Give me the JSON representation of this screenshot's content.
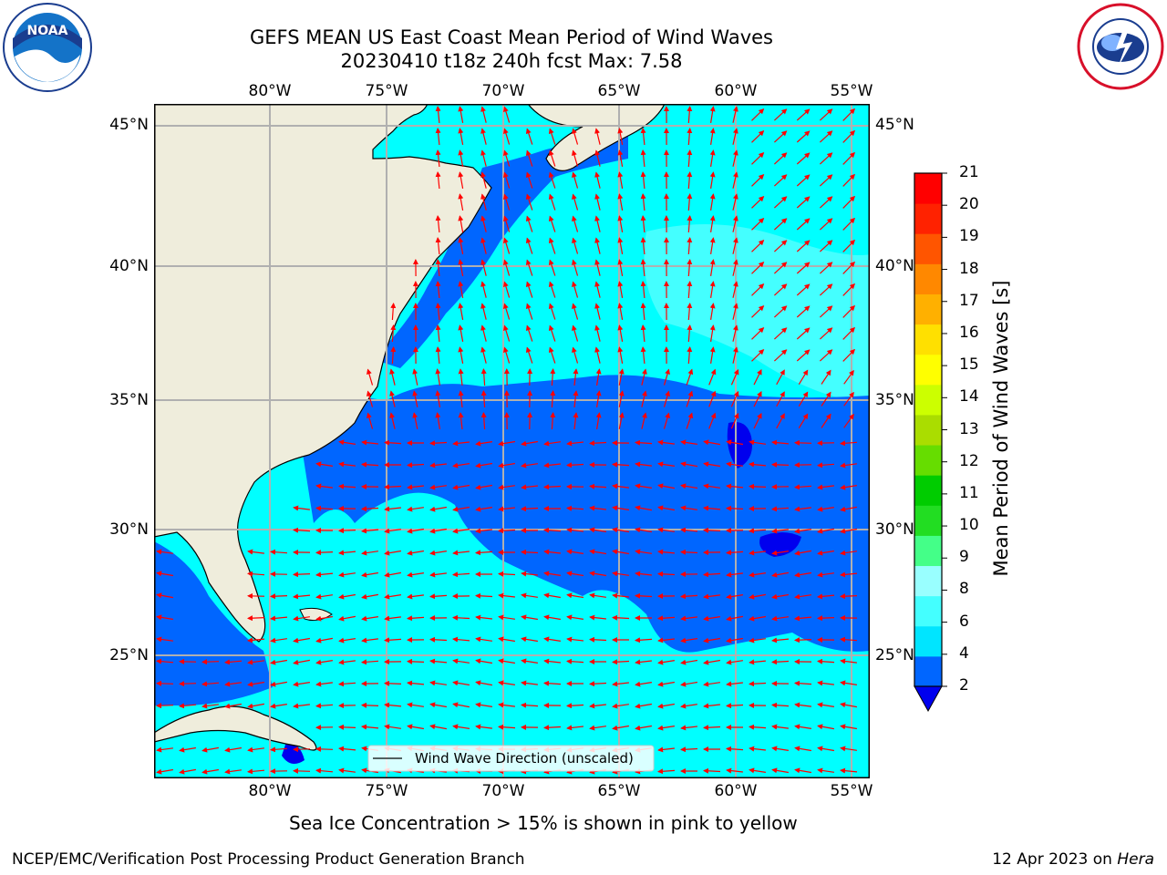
{
  "title_line1": "GEFS MEAN US East Coast Mean Period of Wind Waves",
  "title_line2": "20230410 t18z 240h fcst   Max: 7.58",
  "logos": {
    "left": "noaa-logo",
    "right": "national-weather-service-logo"
  },
  "map": {
    "lon_labels": [
      "80°W",
      "75°W",
      "70°W",
      "65°W",
      "60°W",
      "55°W"
    ],
    "lat_labels": [
      "45°N",
      "40°N",
      "35°N",
      "30°N",
      "25°N"
    ],
    "lon_range": [
      -85,
      -54.5
    ],
    "lat_range": [
      20.5,
      46
    ],
    "grid": true,
    "legend_label": "Wind Wave Direction (unscaled)",
    "arrow_color": "#ff0000",
    "land_color": "#efeddc"
  },
  "colorbar": {
    "label": "Mean Period of Wind Waves [s]",
    "ticks": [
      "2",
      "4",
      "6",
      "8",
      "9",
      "10",
      "11",
      "12",
      "13",
      "14",
      "15",
      "16",
      "17",
      "18",
      "19",
      "20",
      "21"
    ],
    "colors": [
      "#0066ff",
      "#00e5ff",
      "#44ffff",
      "#99ffff",
      "#44ff88",
      "#22dd22",
      "#00cc00",
      "#66dd00",
      "#aadd00",
      "#ccff00",
      "#ffff00",
      "#ffe000",
      "#ffb000",
      "#ff8800",
      "#ff5500",
      "#ff2200",
      "#ff0000"
    ],
    "extend_color": "#0000ee"
  },
  "ice_note": "Sea Ice Concentration > 15% is shown in pink to yellow",
  "credit_left": "NCEP/EMC/Verification Post Processing Product Generation Branch",
  "credit_right_date": "12 Apr 2023 on",
  "credit_right_machine": "Hera"
}
